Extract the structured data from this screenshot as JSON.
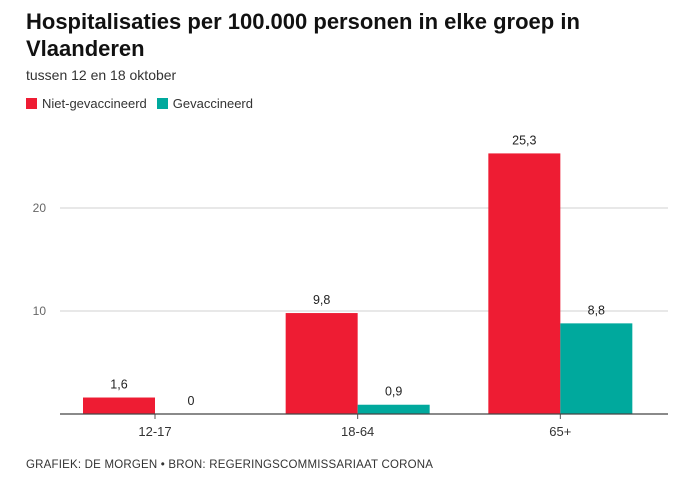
{
  "title": "Hospitalisaties per 100.000 personen in elke groep in Vlaanderen",
  "subtitle": "tussen 12 en 18 oktober",
  "footer": "GRAFIEK: DE MORGEN • BRON: REGERINGSCOMMISSARIAAT CORONA",
  "colors": {
    "niet": "#ee1c33",
    "gevacc": "#00a99d"
  },
  "chart_data": {
    "type": "bar",
    "title": "Hospitalisaties per 100.000 personen in elke groep in Vlaanderen",
    "subtitle": "tussen 12 en 18 oktober",
    "categories": [
      "12-17",
      "18-64",
      "65+"
    ],
    "series": [
      {
        "name": "Niet-gevaccineerd",
        "values": [
          1.6,
          9.8,
          25.3
        ],
        "labels": [
          "1,6",
          "9,8",
          "25,3"
        ]
      },
      {
        "name": "Gevaccineerd",
        "values": [
          0,
          0.9,
          8.8
        ],
        "labels": [
          "0",
          "0,9",
          "8,8"
        ]
      }
    ],
    "ylim": [
      0,
      29.5
    ],
    "yticks": [
      10,
      20
    ],
    "grid": true,
    "legend": "top-left"
  }
}
